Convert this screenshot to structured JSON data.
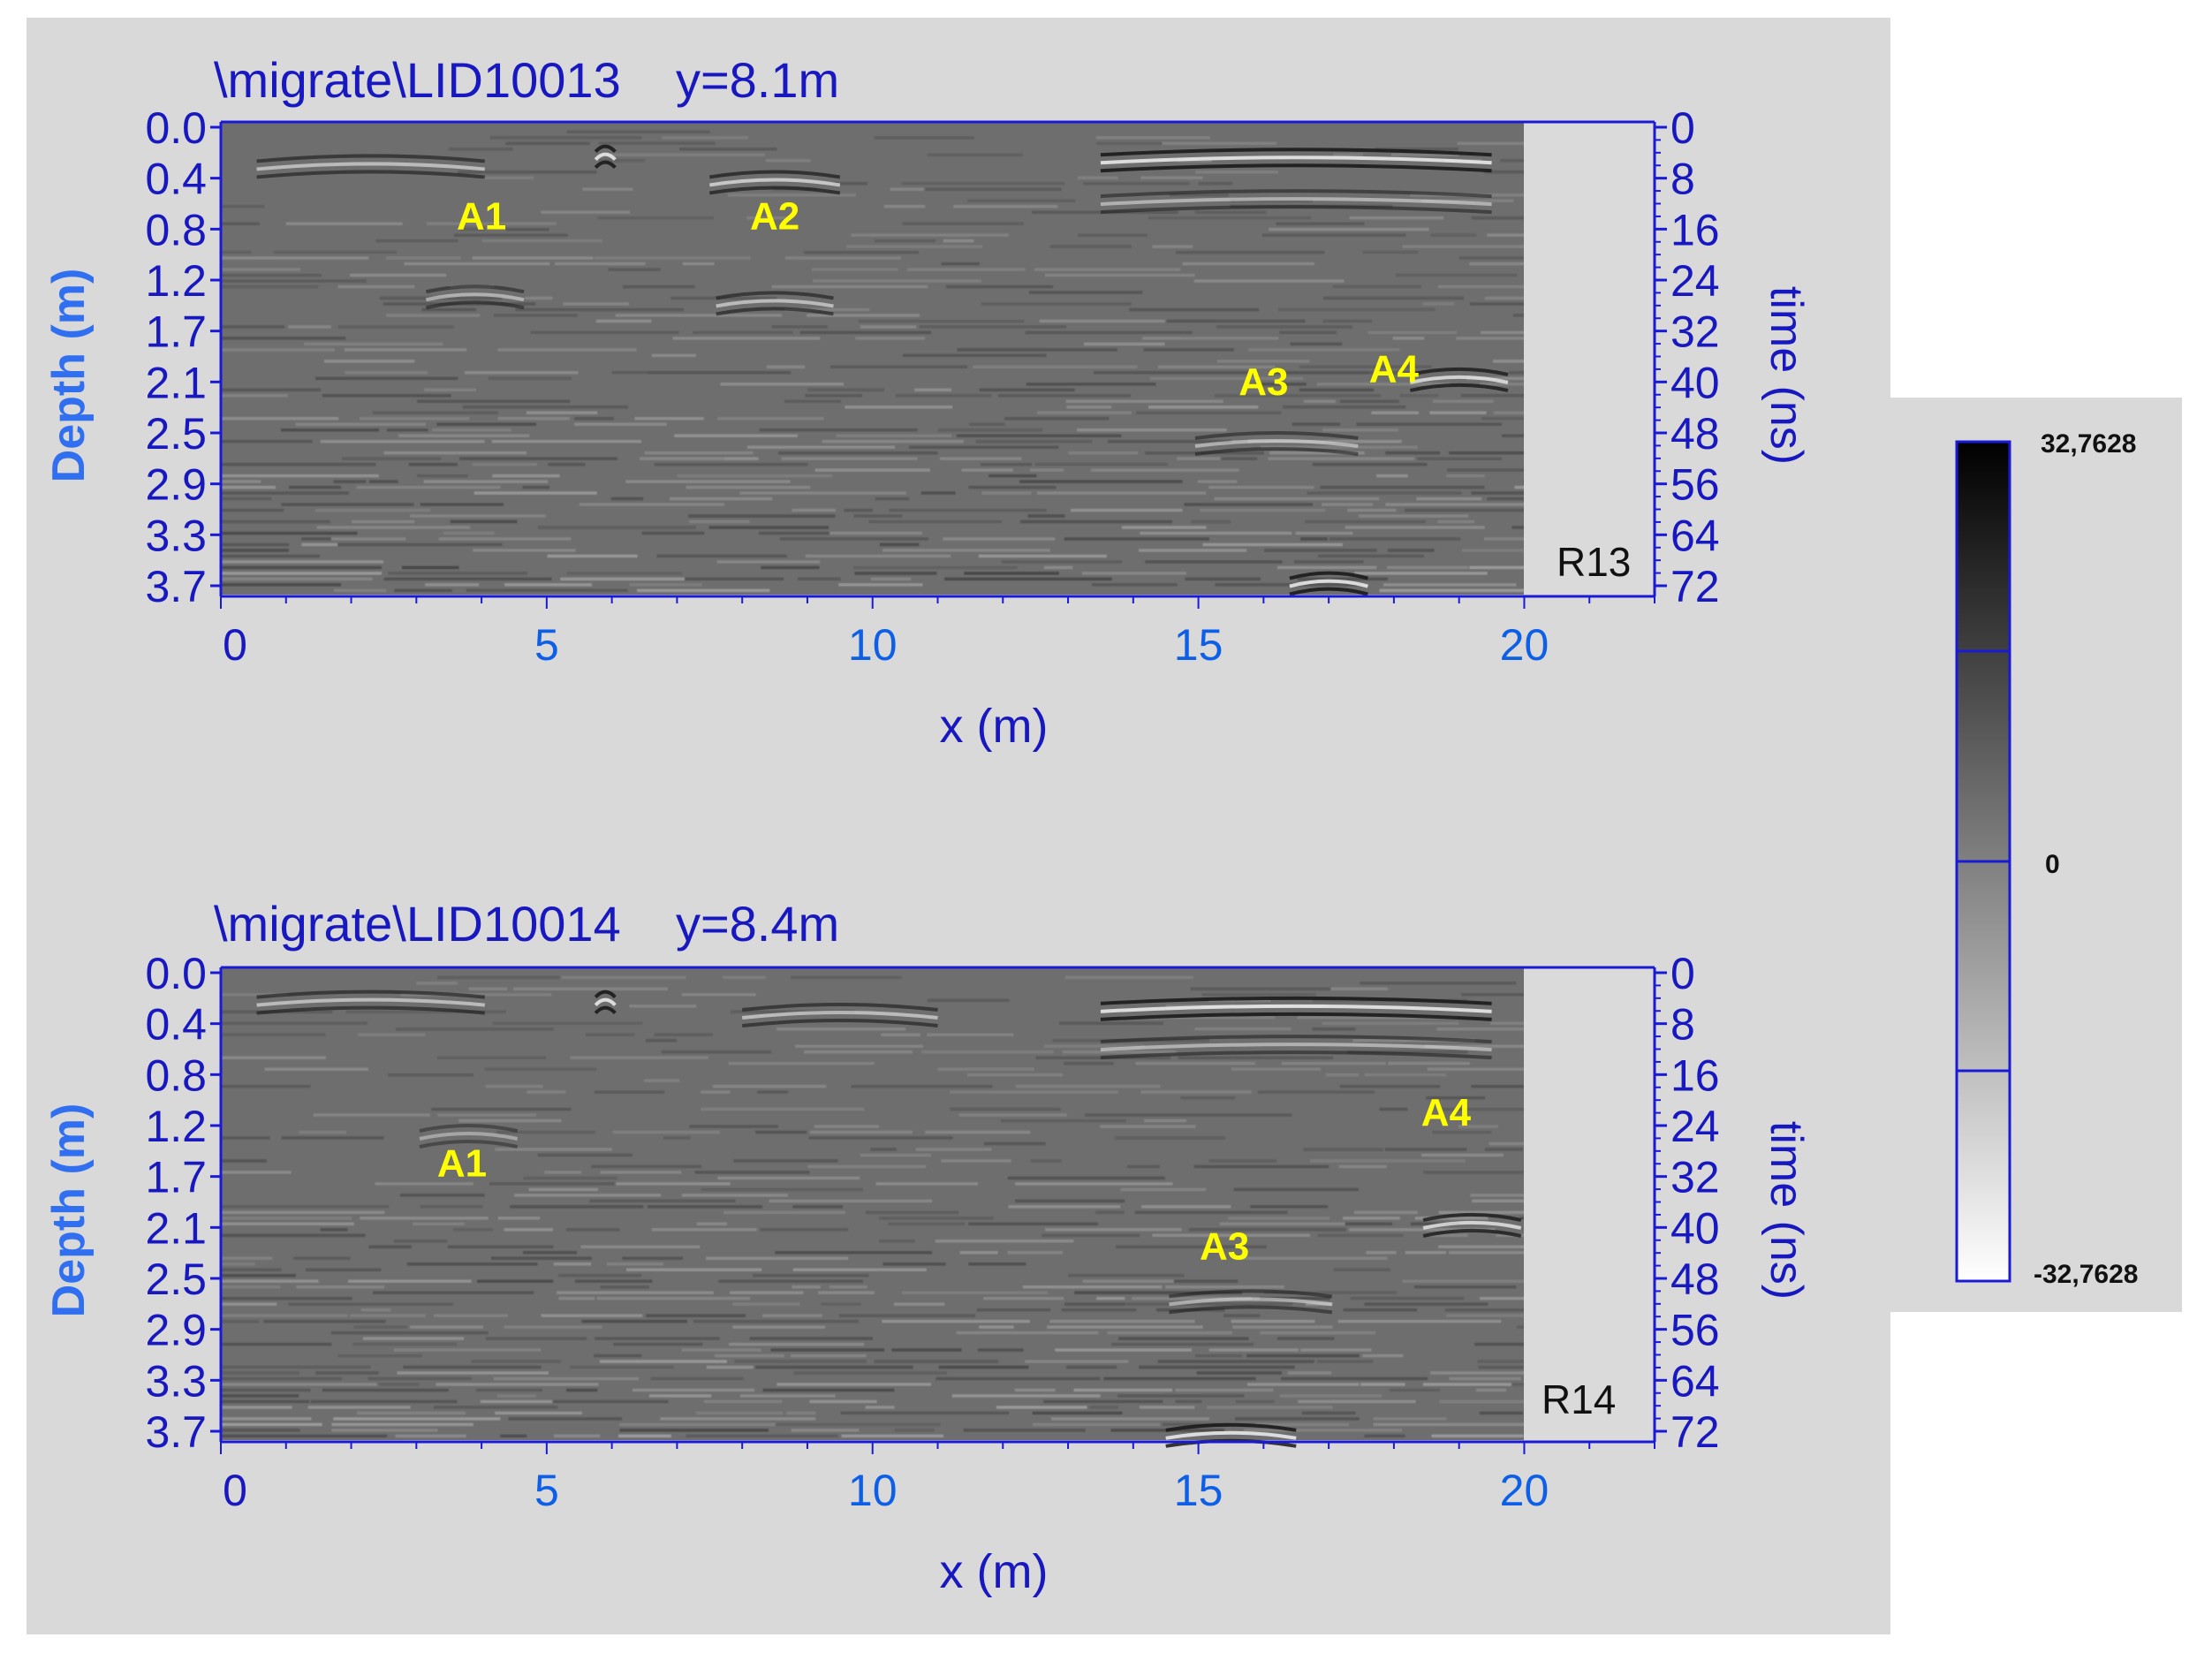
{
  "colors": {
    "figure_background": "#d9d9d9",
    "axis_blue": "#1a1ad6",
    "tick_label_blue": "#1818c0",
    "xtick_label_blue": "#0d5fe8",
    "axis_title_blue": "#2f6ff0",
    "annotation_yellow": "#ffff00",
    "radargram_mid_gray": "#6e6e6e",
    "colorbar_border": "#1a1ad6"
  },
  "colorbar": {
    "max_label": "32,7628",
    "mid_label": "0",
    "min_label": "-32,7628",
    "range": [
      -32.7628,
      32.7628
    ],
    "scale": "grayscale, black = max, white = min"
  },
  "chart_data": [
    {
      "type": "heatmap",
      "title": "\\migrate\\LID10013    y=8.1m",
      "xlabel": "x (m)",
      "ylabel": "Depth (m)",
      "y2label": "time (ns)",
      "xlim": [
        0,
        22
      ],
      "data_xlim": [
        0,
        20
      ],
      "x_ticks": [
        "0",
        "5",
        "10",
        "15",
        "20"
      ],
      "depth_ticks": [
        "0.0",
        "0.4",
        "0.8",
        "1.2",
        "1.7",
        "2.1",
        "2.5",
        "2.9",
        "3.3",
        "3.7"
      ],
      "time_ticks": [
        "0",
        "8",
        "16",
        "24",
        "32",
        "40",
        "48",
        "56",
        "64",
        "72"
      ],
      "time_range_ns": [
        0,
        72
      ],
      "panel_label": "R13",
      "annotations": [
        {
          "text": "A1",
          "x": 4.0,
          "time_ns": 16
        },
        {
          "text": "A2",
          "x": 8.5,
          "time_ns": 16
        },
        {
          "text": "A3",
          "x": 16.0,
          "time_ns": 42
        },
        {
          "text": "A4",
          "x": 18.0,
          "time_ns": 40
        }
      ],
      "reflectors": [
        {
          "x": 2.3,
          "time_ns": 4.5,
          "amp": 0.7,
          "w": 3.5
        },
        {
          "x": 5.9,
          "time_ns": 3,
          "amp": 1,
          "w": 0.3
        },
        {
          "x": 8.5,
          "time_ns": 7,
          "amp": 0.8,
          "w": 2
        },
        {
          "x": 16.5,
          "time_ns": 3.5,
          "amp": 1,
          "w": 6
        },
        {
          "x": 16.5,
          "time_ns": 10,
          "amp": 0.6,
          "w": 6
        },
        {
          "x": 3.9,
          "time_ns": 25,
          "amp": 0.6,
          "w": 1.5
        },
        {
          "x": 8.5,
          "time_ns": 26,
          "amp": 0.7,
          "w": 1.8
        },
        {
          "x": 16.2,
          "time_ns": 48,
          "amp": 0.6,
          "w": 2.5
        },
        {
          "x": 19.0,
          "time_ns": 38,
          "amp": 0.9,
          "w": 1.5
        },
        {
          "x": 17.0,
          "time_ns": 70,
          "amp": 1,
          "w": 1.2
        }
      ]
    },
    {
      "type": "heatmap",
      "title": "\\migrate\\LID10014    y=8.4m",
      "xlabel": "x (m)",
      "ylabel": "Depth (m)",
      "y2label": "time (ns)",
      "xlim": [
        0,
        22
      ],
      "data_xlim": [
        0,
        20
      ],
      "x_ticks": [
        "0",
        "5",
        "10",
        "15",
        "20"
      ],
      "depth_ticks": [
        "0.0",
        "0.4",
        "0.8",
        "1.2",
        "1.7",
        "2.1",
        "2.5",
        "2.9",
        "3.3",
        "3.7"
      ],
      "time_ticks": [
        "0",
        "8",
        "16",
        "24",
        "32",
        "40",
        "48",
        "56",
        "64",
        "72"
      ],
      "time_range_ns": [
        0,
        72
      ],
      "panel_label": "R14",
      "annotations": [
        {
          "text": "A1",
          "x": 3.7,
          "time_ns": 32
        },
        {
          "text": "A3",
          "x": 15.4,
          "time_ns": 45
        },
        {
          "text": "A4",
          "x": 18.8,
          "time_ns": 24
        }
      ],
      "reflectors": [
        {
          "x": 2.3,
          "time_ns": 3,
          "amp": 0.7,
          "w": 3.5
        },
        {
          "x": 5.9,
          "time_ns": 3,
          "amp": 1,
          "w": 0.3
        },
        {
          "x": 9.5,
          "time_ns": 5,
          "amp": 0.7,
          "w": 3
        },
        {
          "x": 16.5,
          "time_ns": 4,
          "amp": 1,
          "w": 6
        },
        {
          "x": 16.5,
          "time_ns": 10,
          "amp": 0.6,
          "w": 6
        },
        {
          "x": 3.8,
          "time_ns": 24,
          "amp": 0.5,
          "w": 1.5
        },
        {
          "x": 19.2,
          "time_ns": 38,
          "amp": 0.9,
          "w": 1.5
        },
        {
          "x": 15.8,
          "time_ns": 50,
          "amp": 0.6,
          "w": 2.5
        },
        {
          "x": 15.5,
          "time_ns": 71,
          "amp": 1,
          "w": 2
        }
      ]
    }
  ]
}
